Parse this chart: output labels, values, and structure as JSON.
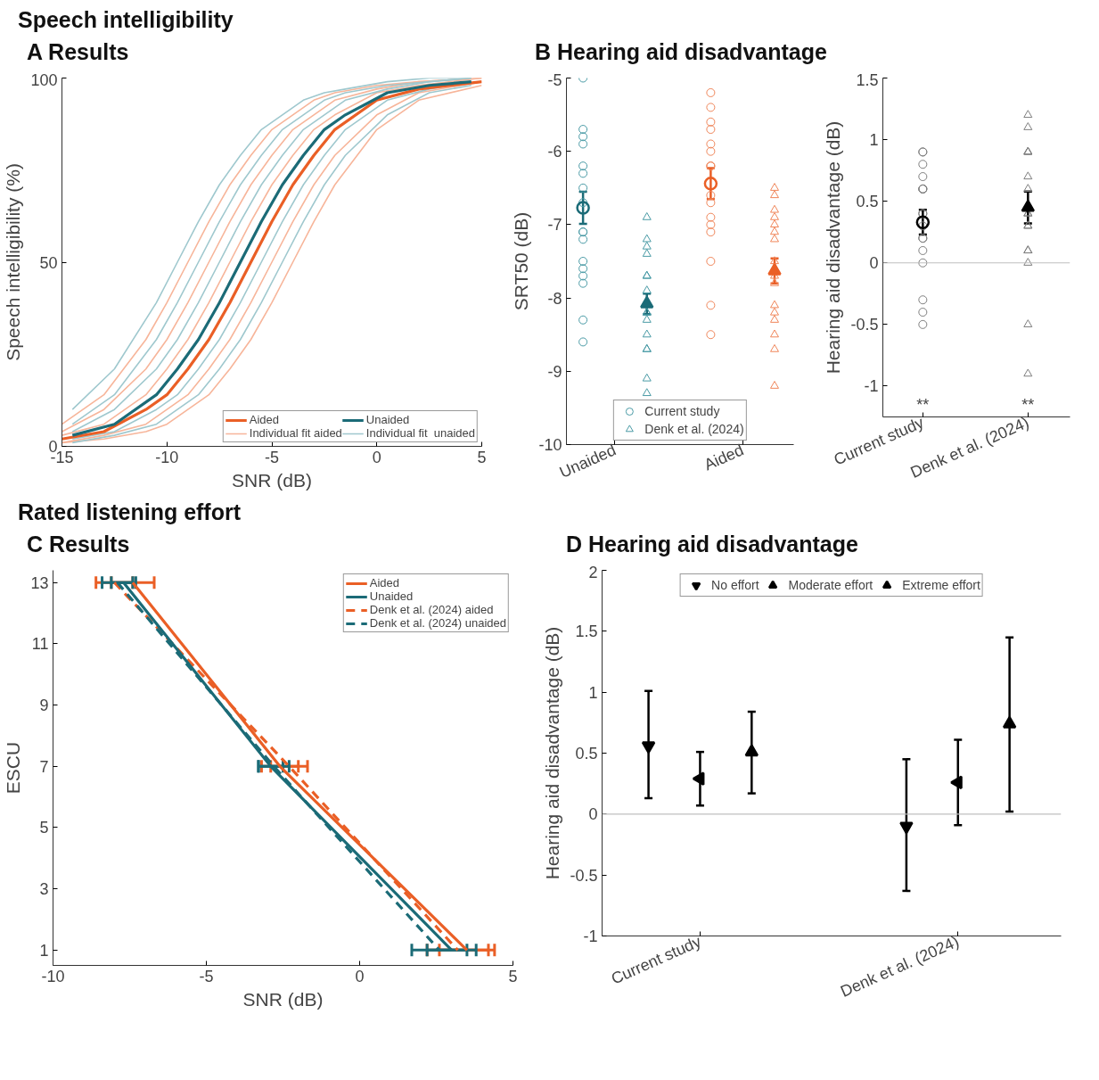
{
  "chart_data": [
    {
      "type": "line",
      "title": "A Results",
      "annotations": [
        "Speech intelligibility"
      ],
      "xlabel": "SNR (dB)",
      "ylabel": "Speech intelligibility (%)",
      "xlim": [
        -15,
        5
      ],
      "xticks": [
        -15,
        -10,
        -5,
        0,
        5
      ],
      "ylim": [
        0,
        100
      ],
      "yticks": [
        0,
        50,
        100
      ],
      "legend": "bottom right",
      "series": [
        {
          "name": "Aided",
          "color": "#ea5f26",
          "x": [
            -15,
            -13,
            -11,
            -10,
            -9,
            -8,
            -7,
            -6,
            -5,
            -4,
            -3,
            -2,
            0,
            2,
            5
          ],
          "values": [
            2,
            4,
            10,
            14,
            21,
            29,
            39,
            50,
            61,
            71,
            79,
            86,
            94,
            97,
            99
          ]
        },
        {
          "name": "Individual fit aided",
          "color": "#f7b59a",
          "x": [
            -15,
            -13,
            -11,
            -10,
            -9,
            -8,
            -7,
            -6,
            -5,
            -4,
            -3,
            -2,
            0,
            2,
            5
          ],
          "values": [
            6,
            14,
            29,
            39,
            50,
            61,
            71,
            79,
            86,
            90,
            94,
            96,
            98,
            99,
            100
          ]
        },
        {
          "name": "Unaided",
          "color": "#1b6b77",
          "x": [
            -14.5,
            -12.5,
            -10.5,
            -9.5,
            -8.5,
            -7.5,
            -6.5,
            -5.5,
            -4.5,
            -3.5,
            -2.5,
            -1.5,
            0.5,
            2.5,
            4.5
          ],
          "values": [
            3,
            6,
            14,
            21,
            29,
            39,
            50,
            61,
            71,
            79,
            86,
            90,
            96,
            98,
            99
          ]
        },
        {
          "name": "Individual fit  unaided",
          "color": "#9fc8ce",
          "x": [
            -14.5,
            -12.5,
            -10.5,
            -9.5,
            -8.5,
            -7.5,
            -6.5,
            -5.5,
            -4.5,
            -3.5,
            -2.5,
            -1.5,
            0.5,
            2.5,
            4.5
          ],
          "values": [
            10,
            21,
            39,
            50,
            61,
            71,
            79,
            86,
            90,
            94,
            96,
            97,
            99,
            100,
            100
          ]
        },
        {
          "color": "#f7b59a",
          "x": [
            -15,
            -13,
            -11,
            -10,
            -9,
            -8,
            -7,
            -6,
            -5,
            -4,
            -3,
            -2,
            0,
            2,
            5
          ],
          "values": [
            4,
            10,
            21,
            29,
            39,
            50,
            61,
            71,
            79,
            86,
            90,
            94,
            97,
            99,
            100
          ]
        },
        {
          "color": "#f7b59a",
          "x": [
            -15,
            -13,
            -11,
            -10,
            -9,
            -8,
            -7,
            -6,
            -5,
            -4,
            -3,
            -2,
            0,
            2,
            5
          ],
          "values": [
            3,
            6,
            14,
            21,
            29,
            39,
            50,
            61,
            71,
            79,
            86,
            90,
            96,
            98,
            100
          ]
        },
        {
          "color": "#f7b59a",
          "x": [
            -15,
            -13,
            -11,
            -10,
            -9,
            -8,
            -7,
            -6,
            -5,
            -4,
            -3,
            -2,
            0,
            2,
            5
          ],
          "values": [
            1,
            3,
            6,
            10,
            14,
            21,
            29,
            39,
            50,
            61,
            71,
            79,
            90,
            96,
            99
          ]
        },
        {
          "color": "#f7b59a",
          "x": [
            -15,
            -13,
            -11,
            -10,
            -9,
            -8,
            -7,
            -6,
            -5,
            -4,
            -3,
            -2,
            0,
            2,
            5
          ],
          "values": [
            1,
            2,
            4,
            6,
            10,
            14,
            21,
            29,
            39,
            50,
            61,
            71,
            86,
            94,
            98
          ]
        },
        {
          "color": "#9fc8ce",
          "x": [
            -14.5,
            -12.5,
            -10.5,
            -9.5,
            -8.5,
            -7.5,
            -6.5,
            -5.5,
            -4.5,
            -3.5,
            -2.5,
            -1.5,
            0.5,
            2.5,
            4.5
          ],
          "values": [
            6,
            14,
            29,
            39,
            50,
            61,
            71,
            79,
            86,
            90,
            94,
            96,
            98,
            99,
            100
          ]
        },
        {
          "color": "#9fc8ce",
          "x": [
            -14.5,
            -12.5,
            -10.5,
            -9.5,
            -8.5,
            -7.5,
            -6.5,
            -5.5,
            -4.5,
            -3.5,
            -2.5,
            -1.5,
            0.5,
            2.5,
            4.5
          ],
          "values": [
            4,
            10,
            21,
            29,
            39,
            50,
            61,
            71,
            79,
            86,
            90,
            94,
            97,
            99,
            100
          ]
        },
        {
          "color": "#9fc8ce",
          "x": [
            -14.5,
            -12.5,
            -10.5,
            -9.5,
            -8.5,
            -7.5,
            -6.5,
            -5.5,
            -4.5,
            -3.5,
            -2.5,
            -1.5,
            0.5,
            2.5,
            4.5
          ],
          "values": [
            2,
            4,
            10,
            14,
            21,
            29,
            39,
            50,
            61,
            71,
            79,
            86,
            94,
            97,
            99
          ]
        },
        {
          "color": "#9fc8ce",
          "x": [
            -14.5,
            -12.5,
            -10.5,
            -9.5,
            -8.5,
            -7.5,
            -6.5,
            -5.5,
            -4.5,
            -3.5,
            -2.5,
            -1.5,
            0.5,
            2.5,
            4.5
          ],
          "values": [
            1,
            3,
            6,
            10,
            14,
            21,
            29,
            39,
            50,
            61,
            71,
            79,
            90,
            96,
            98
          ]
        }
      ]
    },
    {
      "type": "scatter",
      "title": "B Hearing aid disadvantage",
      "ylabel": "SRT50 (dB)",
      "categories": [
        "Unaided",
        "Aided"
      ],
      "ylim": [
        -10,
        -5
      ],
      "yticks": [
        -10,
        -9,
        -8,
        -7,
        -6,
        -5
      ],
      "legend": "bottom",
      "series": [
        {
          "name": "Current study",
          "marker": "circle",
          "x": [
            "Unaided",
            "Unaided",
            "Unaided",
            "Unaided",
            "Unaided",
            "Unaided",
            "Unaided",
            "Unaided",
            "Unaided",
            "Unaided",
            "Unaided",
            "Unaided",
            "Unaided",
            "Unaided",
            "Unaided",
            "Unaided",
            "Unaided",
            "Aided",
            "Aided",
            "Aided",
            "Aided",
            "Aided",
            "Aided",
            "Aided",
            "Aided",
            "Aided",
            "Aided",
            "Aided",
            "Aided",
            "Aided",
            "Aided",
            "Aided",
            "Aided"
          ],
          "values": [
            -5.0,
            -5.7,
            -5.8,
            -5.9,
            -6.2,
            -6.3,
            -6.5,
            -6.7,
            -7.1,
            -7.1,
            -7.2,
            -7.5,
            -7.6,
            -7.7,
            -7.8,
            -8.3,
            -8.6,
            -5.2,
            -5.4,
            -5.6,
            -5.7,
            -5.9,
            -6.0,
            -6.2,
            -6.2,
            -6.6,
            -6.7,
            -6.9,
            -7.0,
            -7.1,
            -7.5,
            -8.1,
            -8.5
          ],
          "colors": [
            "#4a9ba6",
            "#4a9ba6",
            "#4a9ba6",
            "#4a9ba6",
            "#4a9ba6",
            "#4a9ba6",
            "#4a9ba6",
            "#4a9ba6",
            "#4a9ba6",
            "#4a9ba6",
            "#4a9ba6",
            "#4a9ba6",
            "#4a9ba6",
            "#4a9ba6",
            "#4a9ba6",
            "#4a9ba6",
            "#4a9ba6",
            "#f0865a",
            "#f0865a",
            "#f0865a",
            "#f0865a",
            "#f0865a",
            "#f0865a",
            "#f0865a",
            "#f0865a",
            "#f0865a",
            "#f0865a",
            "#f0865a",
            "#f0865a",
            "#f0865a",
            "#f0865a",
            "#f0865a",
            "#f0865a"
          ]
        },
        {
          "name": "Denk et al. (2024)",
          "marker": "triangle",
          "x": [
            "Unaided",
            "Unaided",
            "Unaided",
            "Unaided",
            "Unaided",
            "Unaided",
            "Unaided",
            "Unaided",
            "Unaided",
            "Unaided",
            "Unaided",
            "Unaided",
            "Unaided",
            "Unaided",
            "Unaided",
            "Unaided",
            "Aided",
            "Aided",
            "Aided",
            "Aided",
            "Aided",
            "Aided",
            "Aided",
            "Aided",
            "Aided",
            "Aided",
            "Aided",
            "Aided",
            "Aided",
            "Aided",
            "Aided",
            "Aided"
          ],
          "values": [
            -6.9,
            -7.2,
            -7.3,
            -7.4,
            -7.7,
            -7.7,
            -7.9,
            -8.2,
            -8.2,
            -8.3,
            -8.5,
            -8.7,
            -8.7,
            -9.1,
            -9.3,
            null,
            -6.5,
            -6.6,
            -6.8,
            -6.9,
            -7.0,
            -7.1,
            -7.2,
            -7.5,
            -7.7,
            -7.8,
            -8.1,
            -8.2,
            -8.3,
            -8.5,
            -8.7,
            -9.2
          ],
          "colors": [
            "#4a9ba6",
            "#4a9ba6",
            "#4a9ba6",
            "#4a9ba6",
            "#4a9ba6",
            "#4a9ba6",
            "#4a9ba6",
            "#4a9ba6",
            "#4a9ba6",
            "#4a9ba6",
            "#4a9ba6",
            "#4a9ba6",
            "#4a9ba6",
            "#4a9ba6",
            "#4a9ba6",
            "#4a9ba6",
            "#f0865a",
            "#f0865a",
            "#f0865a",
            "#f0865a",
            "#f0865a",
            "#f0865a",
            "#f0865a",
            "#f0865a",
            "#f0865a",
            "#f0865a",
            "#f0865a",
            "#f0865a",
            "#f0865a",
            "#f0865a",
            "#f0865a",
            "#f0865a"
          ]
        },
        {
          "marker": "circle",
          "x": [
            "Unaided",
            "Aided"
          ],
          "values": [
            -6.77,
            -6.44
          ],
          "errors": [
            0.22,
            0.21
          ],
          "colors": [
            "#1b6b77",
            "#ea5f26"
          ]
        },
        {
          "marker": "triangle",
          "x": [
            "Unaided",
            "Aided"
          ],
          "values": [
            -8.08,
            -7.63
          ],
          "errors": [
            0.14,
            0.17
          ],
          "colors": [
            "#1b6b77",
            "#ea5f26"
          ]
        }
      ]
    },
    {
      "type": "scatter",
      "ylabel": "Hearing aid disadvantage (dB)",
      "categories": [
        "Current study",
        "Denk et al. (2024)"
      ],
      "ylim": [
        -1.25,
        1.5
      ],
      "yticks": [
        -1,
        -0.5,
        0,
        0.5,
        1,
        1.5
      ],
      "ref_lines": [
        {
          "axis": "y",
          "value": 0,
          "color": "#bfbfbf"
        }
      ],
      "annotations": [
        "**",
        "**"
      ],
      "series": [
        {
          "marker": "circle",
          "color": "#7f7f7f",
          "x": [
            "Current study",
            "Current study",
            "Current study",
            "Current study",
            "Current study",
            "Current study",
            "Current study",
            "Current study",
            "Current study",
            "Current study",
            "Current study",
            "Current study",
            "Current study",
            "Current study",
            "Current study",
            "Current study",
            "Current study"
          ],
          "values": [
            0.9,
            0.9,
            0.8,
            0.7,
            0.6,
            0.6,
            0.6,
            0.4,
            0.4,
            0.3,
            0.2,
            0.2,
            0.1,
            0,
            -0.3,
            -0.4,
            -0.5
          ]
        },
        {
          "marker": "triangle",
          "color": "#7f7f7f",
          "x": [
            "Denk et al. (2024)",
            "Denk et al. (2024)",
            "Denk et al. (2024)",
            "Denk et al. (2024)",
            "Denk et al. (2024)",
            "Denk et al. (2024)",
            "Denk et al. (2024)",
            "Denk et al. (2024)",
            "Denk et al. (2024)",
            "Denk et al. (2024)",
            "Denk et al. (2024)",
            "Denk et al. (2024)",
            "Denk et al. (2024)",
            "Denk et al. (2024)",
            "Denk et al. (2024)",
            "Denk et al. (2024)"
          ],
          "values": [
            1.2,
            1.1,
            0.9,
            0.9,
            0.9,
            0.7,
            0.6,
            0.4,
            0.4,
            0.3,
            0.3,
            0.1,
            0.1,
            0,
            -0.5,
            -0.9
          ]
        },
        {
          "marker": "circle",
          "color": "#000000",
          "x": [
            "Current study"
          ],
          "values": [
            0.33
          ],
          "errors": [
            0.1
          ]
        },
        {
          "marker": "triangle",
          "color": "#000000",
          "x": [
            "Denk et al. (2024)"
          ],
          "values": [
            0.45
          ],
          "errors": [
            0.13
          ]
        }
      ]
    },
    {
      "type": "line",
      "title": "C Results",
      "annotations": [
        "Rated listening effort"
      ],
      "xlabel": "SNR (dB)",
      "ylabel": "ESCU",
      "xlim": [
        -10,
        5
      ],
      "xticks": [
        -10,
        -5,
        0,
        5
      ],
      "ylim": [
        0.5,
        13.4
      ],
      "yticks": [
        1,
        3,
        5,
        7,
        9,
        11,
        13
      ],
      "legend": "top right",
      "series": [
        {
          "name": "Aided",
          "color": "#ea5f26",
          "line_style": "solid",
          "x": [
            -7.4,
            -2.6,
            3.5
          ],
          "values": [
            13,
            7,
            1
          ],
          "xerrors": [
            0.7,
            0.6,
            0.9
          ]
        },
        {
          "name": "Unaided",
          "color": "#1b6b77",
          "line_style": "solid",
          "x": [
            -7.7,
            -2.9,
            3.0
          ],
          "values": [
            13,
            7,
            1
          ],
          "xerrors": [
            0.4,
            0.4,
            0.8
          ]
        },
        {
          "name": "Denk et al. (2024) aided",
          "color": "#ea5f26",
          "line_style": "dashed",
          "x": [
            -8.0,
            -2.3,
            3.2
          ],
          "values": [
            13,
            7,
            1
          ],
          "xerrors": [
            0.6,
            0.6,
            1.0
          ]
        },
        {
          "name": "Denk et al. (2024) unaided",
          "color": "#1b6b77",
          "line_style": "dashed",
          "x": [
            -7.9,
            -2.8,
            2.6
          ],
          "values": [
            13,
            7,
            1
          ],
          "xerrors": [
            0.5,
            0.5,
            0.9
          ]
        }
      ]
    },
    {
      "type": "scatter",
      "title": "D Hearing aid disadvantage",
      "ylabel": "Hearing aid disadvantage (dB)",
      "categories": [
        "Current study",
        "Denk et al. (2024)"
      ],
      "ylim": [
        -1,
        2
      ],
      "yticks": [
        -1,
        -0.5,
        0,
        0.5,
        1,
        1.5,
        2
      ],
      "legend": "top",
      "ref_lines": [
        {
          "axis": "y",
          "value": 0,
          "color": "#bfbfbf"
        }
      ],
      "series": [
        {
          "name": "No effort",
          "marker": "triangle_down",
          "color": "#000000",
          "x": [
            "Current study",
            "Denk et al. (2024)"
          ],
          "values": [
            0.56,
            -0.1
          ],
          "errors": [
            [
              0.13,
              1.01
            ],
            [
              -0.63,
              0.45
            ]
          ]
        },
        {
          "name": "Moderate effort",
          "marker": "triangle_left",
          "color": "#000000",
          "x": [
            "Current study",
            "Denk et al. (2024)"
          ],
          "values": [
            0.29,
            0.26
          ],
          "errors": [
            [
              0.07,
              0.51
            ],
            [
              -0.09,
              0.61
            ]
          ]
        },
        {
          "name": "Extreme effort",
          "marker": "triangle",
          "color": "#000000",
          "x": [
            "Current study",
            "Denk et al. (2024)"
          ],
          "values": [
            0.51,
            0.74
          ],
          "errors": [
            [
              0.17,
              0.84
            ],
            [
              0.02,
              1.45
            ]
          ]
        }
      ]
    }
  ]
}
